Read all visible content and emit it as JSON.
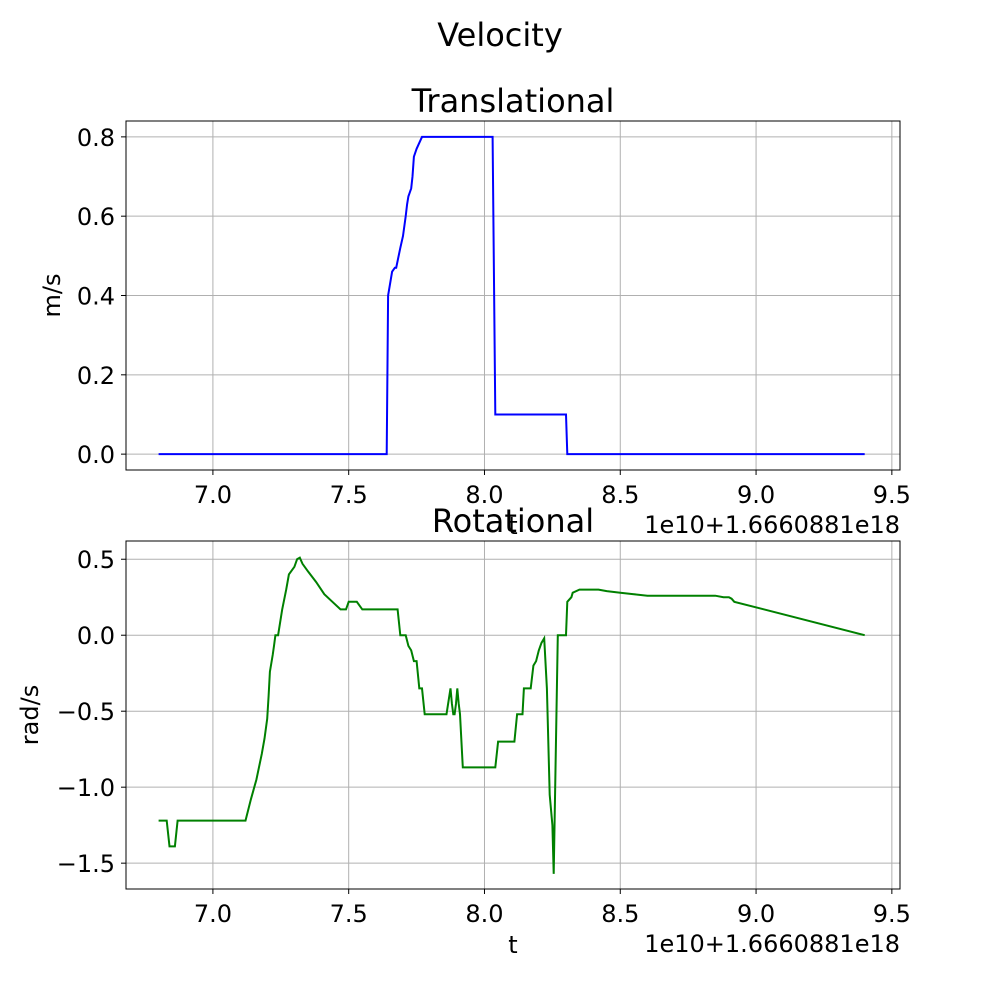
{
  "suptitle": "Velocity",
  "chart_data": [
    {
      "type": "line",
      "title": "Translational",
      "xlabel": "t",
      "ylabel": "m/s",
      "x_offset_label": "1e10+1.6660881e18",
      "xlim": [
        6.68,
        9.53
      ],
      "ylim": [
        -0.04,
        0.84
      ],
      "xticks": [
        7.0,
        7.5,
        8.0,
        8.5,
        9.0,
        9.5
      ],
      "xtick_labels": [
        "7.0",
        "7.5",
        "8.0",
        "8.5",
        "9.0",
        "9.5"
      ],
      "yticks": [
        0.0,
        0.2,
        0.4,
        0.6,
        0.8
      ],
      "ytick_labels": [
        "0.0",
        "0.2",
        "0.4",
        "0.6",
        "0.8"
      ],
      "grid": true,
      "color": "#0000ff",
      "series": [
        {
          "x": [
            6.8,
            7.64,
            7.645,
            7.66,
            7.67,
            7.675,
            7.69,
            7.7,
            7.71,
            7.715,
            7.72,
            7.725,
            7.73,
            7.735,
            7.74,
            7.75,
            7.77,
            7.8,
            8.0,
            8.03,
            8.04,
            8.1,
            8.3,
            8.305,
            9.4
          ],
          "y": [
            0.0,
            0.0,
            0.4,
            0.46,
            0.47,
            0.47,
            0.52,
            0.55,
            0.6,
            0.63,
            0.65,
            0.66,
            0.67,
            0.7,
            0.75,
            0.77,
            0.8,
            0.8,
            0.8,
            0.8,
            0.1,
            0.1,
            0.1,
            0.0,
            0.0
          ]
        }
      ]
    },
    {
      "type": "line",
      "title": "Rotational",
      "xlabel": "t",
      "ylabel": "rad/s",
      "x_offset_label": "1e10+1.6660881e18",
      "xlim": [
        6.68,
        9.53
      ],
      "ylim": [
        -1.67,
        0.62
      ],
      "xticks": [
        7.0,
        7.5,
        8.0,
        8.5,
        9.0,
        9.5
      ],
      "xtick_labels": [
        "7.0",
        "7.5",
        "8.0",
        "8.5",
        "9.0",
        "9.5"
      ],
      "yticks": [
        0.5,
        0.0,
        -0.5,
        -1.0,
        -1.5
      ],
      "ytick_labels": [
        "0.5",
        "0.0",
        "−0.5",
        "−1.0",
        "−1.5"
      ],
      "grid": true,
      "color": "#008000",
      "series": [
        {
          "x": [
            6.8,
            6.83,
            6.84,
            6.86,
            6.87,
            6.88,
            7.12,
            7.14,
            7.16,
            7.18,
            7.19,
            7.2,
            7.205,
            7.21,
            7.22,
            7.225,
            7.23,
            7.24,
            7.255,
            7.27,
            7.28,
            7.3,
            7.31,
            7.32,
            7.33,
            7.35,
            7.38,
            7.41,
            7.44,
            7.47,
            7.49,
            7.5,
            7.53,
            7.55,
            7.6,
            7.68,
            7.69,
            7.71,
            7.72,
            7.73,
            7.74,
            7.75,
            7.76,
            7.77,
            7.78,
            7.79,
            7.805,
            7.815,
            7.82,
            7.86,
            7.875,
            7.88,
            7.885,
            7.89,
            7.895,
            7.9,
            7.905,
            7.91,
            7.92,
            7.93,
            7.94,
            7.95,
            8.04,
            8.05,
            8.06,
            8.11,
            8.12,
            8.14,
            8.145,
            8.15,
            8.17,
            8.18,
            8.19,
            8.2,
            8.21,
            8.22,
            8.23,
            8.24,
            8.25,
            8.255,
            8.27,
            8.3,
            8.305,
            8.32,
            8.325,
            8.35,
            8.37,
            8.4,
            8.42,
            8.45,
            8.5,
            8.55,
            8.6,
            8.7,
            8.8,
            8.85,
            8.88,
            8.9,
            8.91,
            8.92,
            9.4
          ],
          "y": [
            -1.22,
            -1.22,
            -1.39,
            -1.39,
            -1.22,
            -1.22,
            -1.22,
            -1.08,
            -0.95,
            -0.78,
            -0.68,
            -0.55,
            -0.4,
            -0.24,
            -0.13,
            -0.07,
            0.0,
            0.0,
            0.17,
            0.3,
            0.4,
            0.45,
            0.5,
            0.51,
            0.47,
            0.42,
            0.35,
            0.27,
            0.22,
            0.17,
            0.17,
            0.22,
            0.22,
            0.17,
            0.17,
            0.17,
            0.0,
            0.0,
            -0.07,
            -0.1,
            -0.17,
            -0.17,
            -0.35,
            -0.35,
            -0.52,
            -0.52,
            -0.52,
            -0.52,
            -0.52,
            -0.52,
            -0.35,
            -0.45,
            -0.52,
            -0.52,
            -0.45,
            -0.35,
            -0.45,
            -0.52,
            -0.87,
            -0.87,
            -0.87,
            -0.87,
            -0.87,
            -0.7,
            -0.7,
            -0.7,
            -0.52,
            -0.52,
            -0.35,
            -0.35,
            -0.35,
            -0.2,
            -0.17,
            -0.1,
            -0.05,
            -0.02,
            -0.35,
            -1.05,
            -1.25,
            -1.57,
            0.0,
            0.0,
            0.22,
            0.25,
            0.28,
            0.3,
            0.3,
            0.3,
            0.3,
            0.29,
            0.28,
            0.27,
            0.26,
            0.26,
            0.26,
            0.26,
            0.25,
            0.25,
            0.24,
            0.22,
            0.0
          ]
        }
      ]
    }
  ]
}
